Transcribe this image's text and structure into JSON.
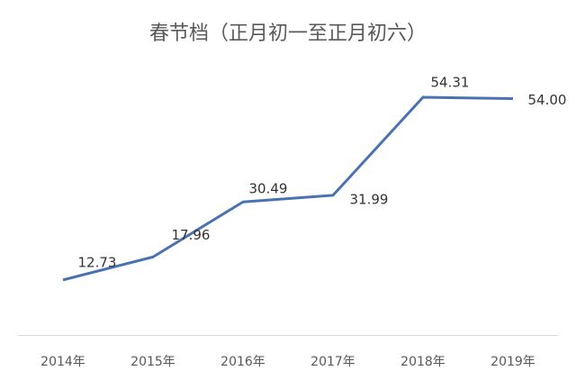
{
  "chart_data": {
    "type": "line",
    "title": "春节档（正月初一至正月初六）",
    "categories": [
      "2014年",
      "2015年",
      "2016年",
      "2017年",
      "2018年",
      "2019年"
    ],
    "series": [
      {
        "color": "#4a72b2",
        "values": [
          12.73,
          17.96,
          30.49,
          31.99,
          54.31,
          54.0
        ],
        "value_labels": [
          "12.73",
          "17.96",
          "30.49",
          "31.99",
          "54.31",
          "54.00"
        ]
      }
    ]
  }
}
